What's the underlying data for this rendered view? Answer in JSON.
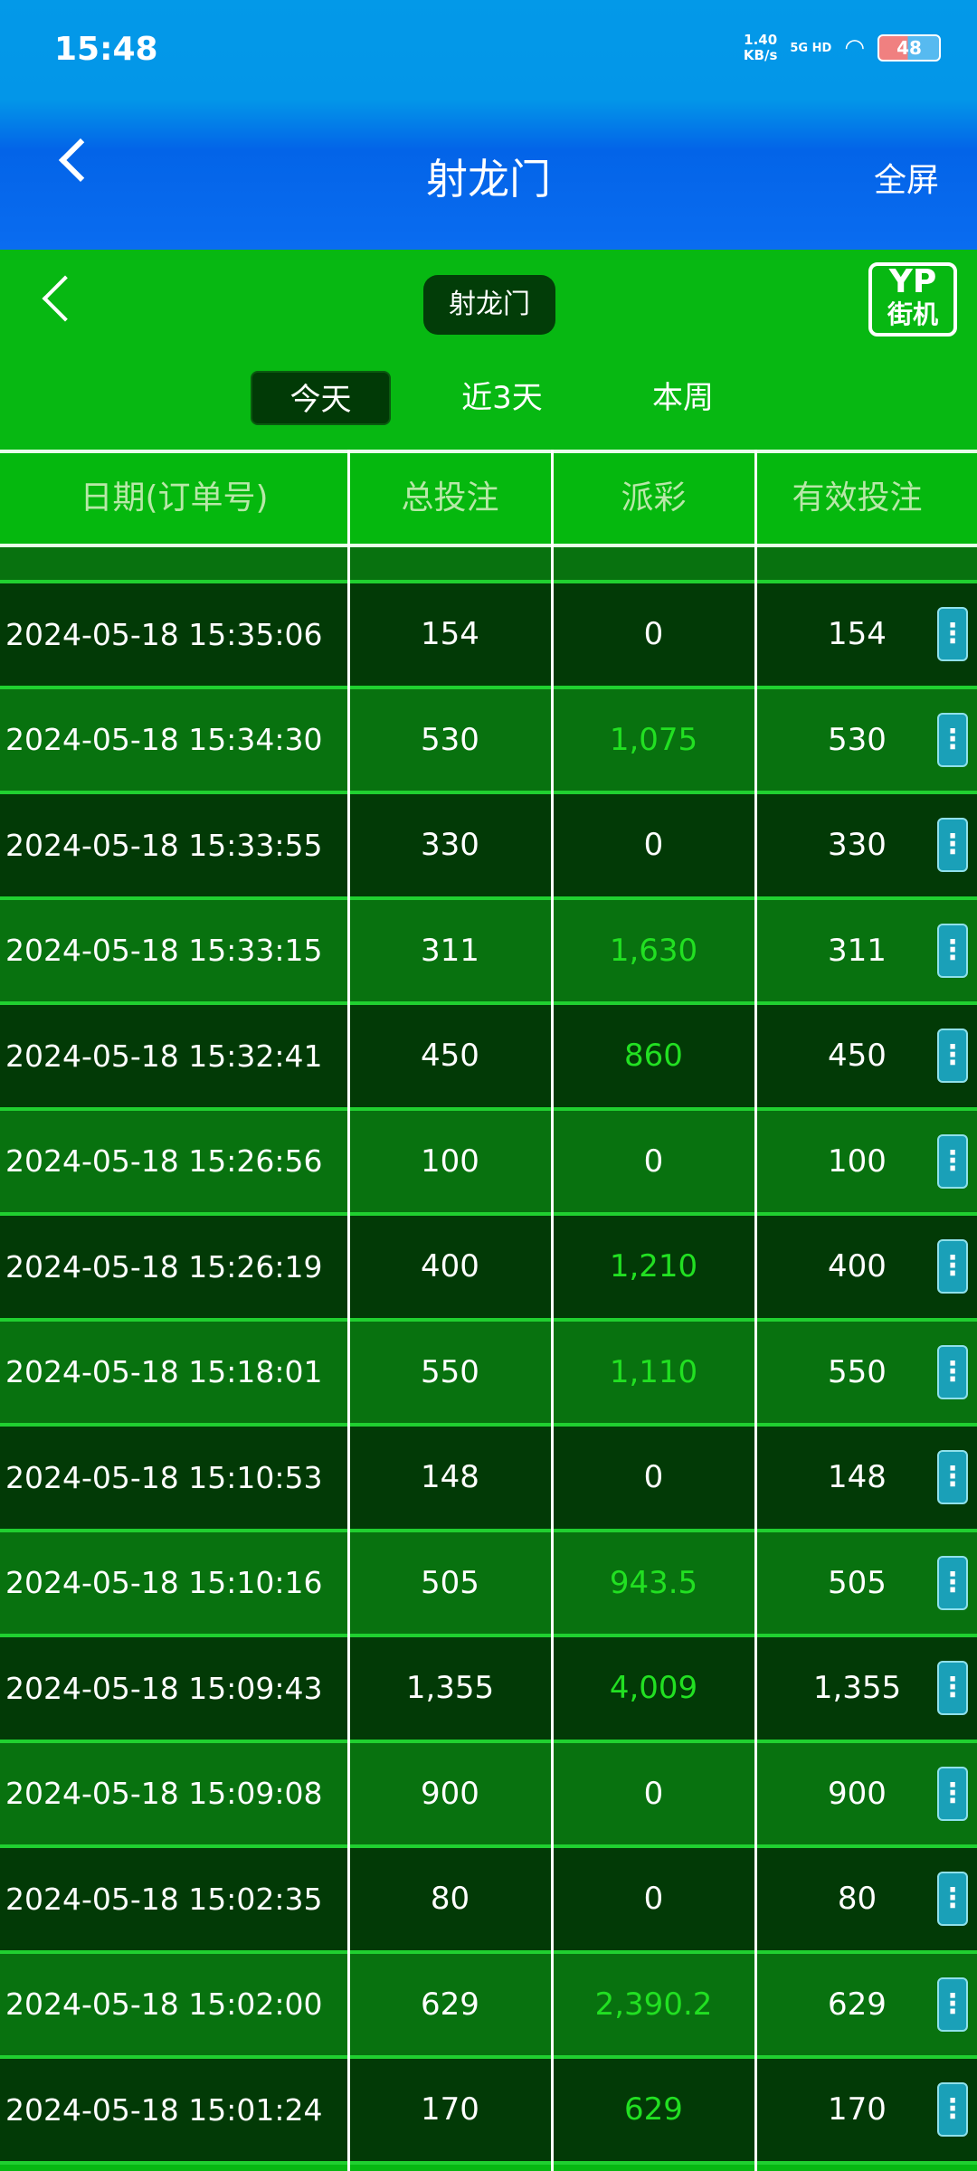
{
  "status_bar": {
    "time": "15:48",
    "net_speed": "1.40",
    "net_unit": "KB/s",
    "signal": "5G HD",
    "battery": "48"
  },
  "header": {
    "title": "射龙门",
    "fullscreen": "全屏"
  },
  "game": {
    "title": "射龙门",
    "logo_top": "YP",
    "logo_bottom": "街机"
  },
  "tabs": [
    {
      "label": "今天",
      "active": true
    },
    {
      "label": "近3天",
      "active": false
    },
    {
      "label": "本周",
      "active": false
    }
  ],
  "columns": [
    "日期(订单号)",
    "总投注",
    "派彩",
    "有效投注"
  ],
  "colors": {
    "payout_win": "#22e022",
    "menu_button": "#1aa0b8",
    "row_dark": "#023a06",
    "row_light": "#08720f"
  },
  "rows": [
    {
      "date": "2024-05-18 15:35:06",
      "bet": "154",
      "payout": "0",
      "valid": "154"
    },
    {
      "date": "2024-05-18 15:34:30",
      "bet": "530",
      "payout": "1,075",
      "valid": "530"
    },
    {
      "date": "2024-05-18 15:33:55",
      "bet": "330",
      "payout": "0",
      "valid": "330"
    },
    {
      "date": "2024-05-18 15:33:15",
      "bet": "311",
      "payout": "1,630",
      "valid": "311"
    },
    {
      "date": "2024-05-18 15:32:41",
      "bet": "450",
      "payout": "860",
      "valid": "450"
    },
    {
      "date": "2024-05-18 15:26:56",
      "bet": "100",
      "payout": "0",
      "valid": "100"
    },
    {
      "date": "2024-05-18 15:26:19",
      "bet": "400",
      "payout": "1,210",
      "valid": "400"
    },
    {
      "date": "2024-05-18 15:18:01",
      "bet": "550",
      "payout": "1,110",
      "valid": "550"
    },
    {
      "date": "2024-05-18 15:10:53",
      "bet": "148",
      "payout": "0",
      "valid": "148"
    },
    {
      "date": "2024-05-18 15:10:16",
      "bet": "505",
      "payout": "943.5",
      "valid": "505"
    },
    {
      "date": "2024-05-18 15:09:43",
      "bet": "1,355",
      "payout": "4,009",
      "valid": "1,355"
    },
    {
      "date": "2024-05-18 15:09:08",
      "bet": "900",
      "payout": "0",
      "valid": "900"
    },
    {
      "date": "2024-05-18 15:02:35",
      "bet": "80",
      "payout": "0",
      "valid": "80"
    },
    {
      "date": "2024-05-18 15:02:00",
      "bet": "629",
      "payout": "2,390.2",
      "valid": "629"
    },
    {
      "date": "2024-05-18 15:01:24",
      "bet": "170",
      "payout": "629",
      "valid": "170"
    }
  ]
}
